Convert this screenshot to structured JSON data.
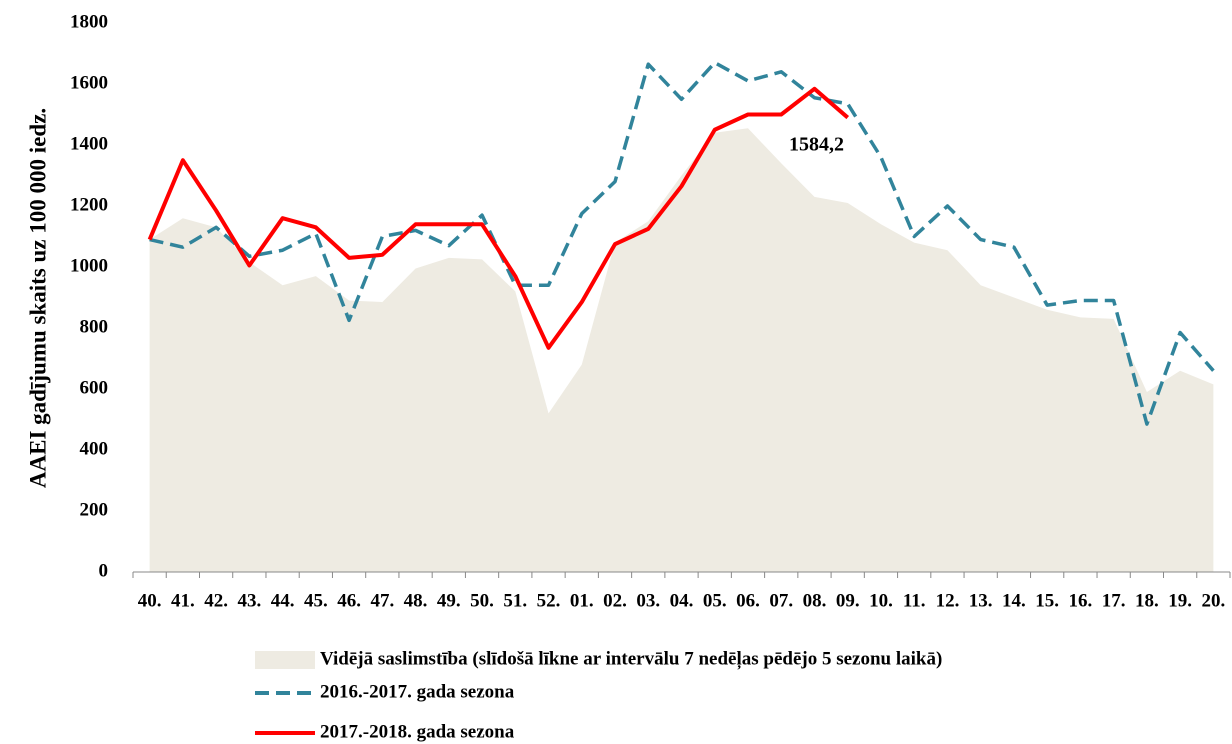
{
  "chart_data": {
    "type": "line",
    "y_label": "AAEI gadījumu skaits uz 100 000 iedz.",
    "categories": [
      "40.",
      "41.",
      "42.",
      "43.",
      "44.",
      "45.",
      "46.",
      "47.",
      "48.",
      "49.",
      "50.",
      "51.",
      "52.",
      "01.",
      "02.",
      "03.",
      "04.",
      "05.",
      "06.",
      "07.",
      "08.",
      "09.",
      "10.",
      "11.",
      "12.",
      "13.",
      "14.",
      "15.",
      "16.",
      "17.",
      "18.",
      "19.",
      "20."
    ],
    "series": [
      {
        "name": "Vidējā saslimstība (slīdošā līkne ar intervālu 7 nedēļas pēdējo 5 sezonu laikā)",
        "kind": "area",
        "color": "#eeebe2",
        "values": [
          1090,
          1160,
          1130,
          1016,
          940,
          970,
          890,
          885,
          995,
          1030,
          1025,
          920,
          520,
          680,
          1080,
          1150,
          1300,
          1440,
          1455,
          1340,
          1230,
          1210,
          1140,
          1080,
          1055,
          940,
          900,
          860,
          835,
          830,
          590,
          660,
          615
        ]
      },
      {
        "name": "2016.-2017.  gada sezona",
        "kind": "dashed",
        "color": "#31849b",
        "values": [
          1090,
          1065,
          1130,
          1035,
          1055,
          1110,
          825,
          1100,
          1120,
          1070,
          1170,
          940,
          940,
          1175,
          1280,
          1665,
          1550,
          1670,
          1610,
          1640,
          1555,
          1535,
          1360,
          1100,
          1200,
          1090,
          1065,
          875,
          890,
          890,
          485,
          785,
          660
        ]
      },
      {
        "name": "2017.-2018. gada sezona",
        "kind": "solid",
        "color": "#ff0000",
        "values": [
          1090,
          1350,
          1185,
          1005,
          1160,
          1130,
          1030,
          1040,
          1140,
          1140,
          1140,
          970,
          735,
          885,
          1075,
          1125,
          1265,
          1450,
          1500,
          1500,
          1584.2,
          1490,
          null,
          null,
          null,
          null,
          null,
          null,
          null,
          null,
          null,
          null,
          null
        ],
        "value_labels": [
          null,
          null,
          null,
          null,
          null,
          null,
          null,
          null,
          null,
          null,
          null,
          null,
          null,
          null,
          null,
          null,
          null,
          null,
          null,
          null,
          "1584,2",
          null,
          null,
          null,
          null,
          null,
          null,
          null,
          null,
          null,
          null,
          null,
          null
        ]
      }
    ],
    "ylim": [
      0,
      1800
    ],
    "yticks": [
      0,
      200,
      400,
      600,
      800,
      1000,
      1200,
      1400,
      1600,
      1800
    ]
  }
}
